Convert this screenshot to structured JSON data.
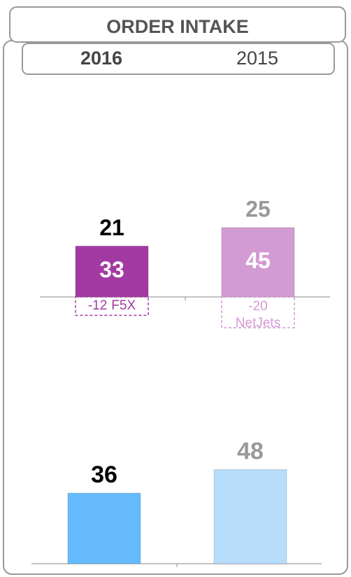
{
  "header": {
    "title": "ORDER INTAKE",
    "categories": [
      "2016",
      "2015"
    ]
  },
  "chart_data": [
    {
      "type": "bar",
      "categories": [
        "2016",
        "2015"
      ],
      "values": [
        33,
        45
      ],
      "colors": [
        "#a33aa3",
        "#d39bd3"
      ],
      "adjustments": {
        "values": [
          -12,
          -20
        ],
        "labels": [
          "F5X",
          "NetJets"
        ]
      },
      "net": {
        "values": [
          21,
          25
        ],
        "colors": [
          "#000000",
          "#999999"
        ]
      },
      "ylim": [
        -30,
        50
      ]
    },
    {
      "type": "bar",
      "categories": [
        "2016",
        "2015"
      ],
      "values": [
        36,
        48
      ],
      "colors": [
        "#66bbff",
        "#b8ddfb"
      ],
      "label_colors": [
        "#000000",
        "#999999"
      ],
      "ylim": [
        0,
        60
      ]
    }
  ]
}
